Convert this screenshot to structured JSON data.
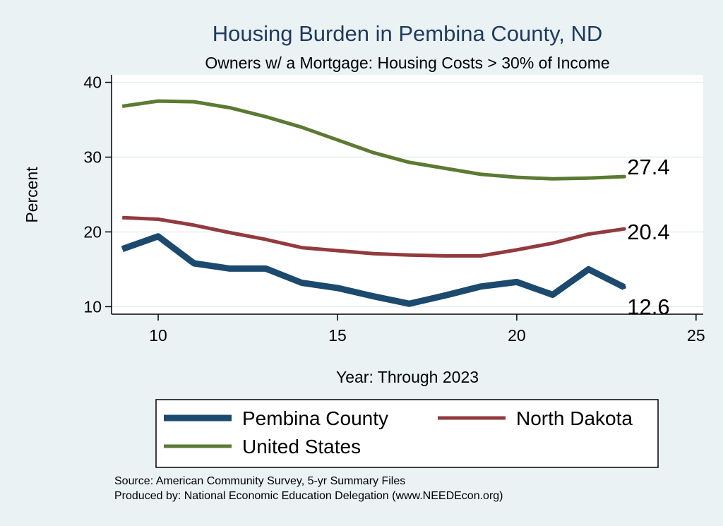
{
  "chart_data": {
    "type": "line",
    "title": "Housing Burden in Pembina County, ND",
    "subtitle": "Owners w/ a Mortgage: Housing Costs > 30% of Income",
    "xlabel": "Year: Through 2023",
    "ylabel": "Percent",
    "xlim": [
      8.7,
      25.2
    ],
    "ylim": [
      9,
      41
    ],
    "xticks": [
      10,
      15,
      20,
      25
    ],
    "yticks": [
      10,
      20,
      30,
      40
    ],
    "grid": true,
    "legend_position": "bottom",
    "series": [
      {
        "name": "Pembina County",
        "color": "#1c4a6e",
        "width": 9,
        "x": [
          9,
          10,
          11,
          12,
          13,
          14,
          15,
          16,
          17,
          18,
          19,
          20,
          21,
          22,
          23
        ],
        "y": [
          17.7,
          19.4,
          15.8,
          15.1,
          15.1,
          13.2,
          12.5,
          11.4,
          10.4,
          11.5,
          12.7,
          13.3,
          11.6,
          15.0,
          12.6
        ],
        "end_label": "12.6"
      },
      {
        "name": "North Dakota",
        "color": "#933a3e",
        "width": 5,
        "x": [
          9,
          10,
          11,
          12,
          13,
          14,
          15,
          16,
          17,
          18,
          19,
          20,
          21,
          22,
          23
        ],
        "y": [
          21.9,
          21.7,
          20.9,
          19.9,
          19.0,
          17.9,
          17.5,
          17.1,
          16.9,
          16.8,
          16.8,
          17.6,
          18.5,
          19.7,
          20.4
        ],
        "end_label": "20.4"
      },
      {
        "name": "United States",
        "color": "#5b7a32",
        "width": 5,
        "x": [
          9,
          10,
          11,
          12,
          13,
          14,
          15,
          16,
          17,
          18,
          19,
          20,
          21,
          22,
          23
        ],
        "y": [
          36.8,
          37.5,
          37.4,
          36.6,
          35.4,
          34.0,
          32.3,
          30.6,
          29.3,
          28.5,
          27.7,
          27.3,
          27.1,
          27.2,
          27.4
        ],
        "end_label": "27.4"
      }
    ],
    "legend": [
      "Pembina County",
      "North Dakota",
      "United States"
    ],
    "notes": [
      "Source: American Community Survey, 5-yr Summary Files",
      "Produced by: National Economic Education Delegation (www.NEEDEcon.org)"
    ]
  },
  "colors": {
    "background": "#eaf2f3",
    "plot_background": "#ffffff",
    "grid": "#e6eef0",
    "title": "#1f3a5f"
  }
}
